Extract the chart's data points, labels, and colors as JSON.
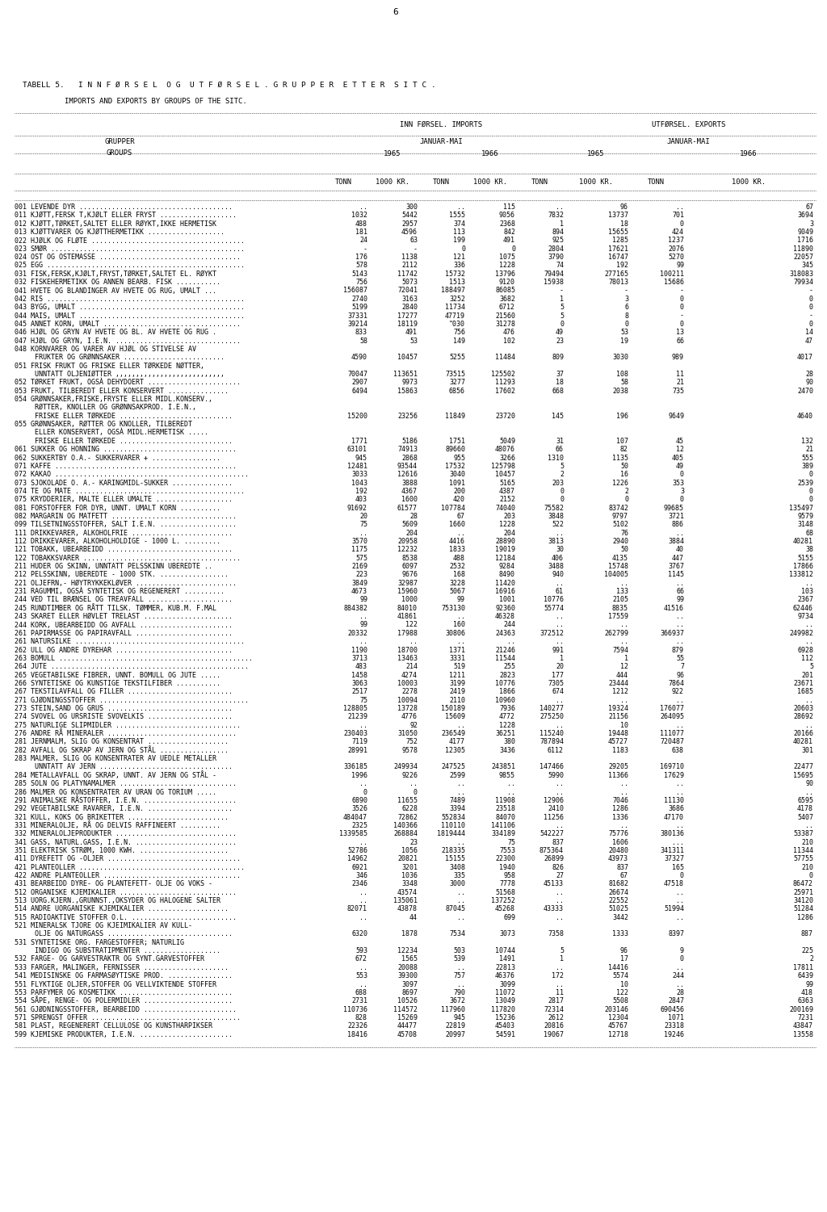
{
  "title1": "TABELL 5.   I N N F Ø R S E L  O G  U T F Ø R S E L . G R U P P E R  E T T E R  S I T C .",
  "title2": "IMPORTS AND EXPORTS BY GROUPS OF THE SITC.",
  "rows": [
    [
      "001 LEVENDE DYR ......................................",
      "..",
      "300",
      "..",
      "115",
      "..",
      "96",
      "..",
      "67"
    ],
    [
      "011 KJØTT,FERSK T,KJØLT ELLER FRYST ...................",
      "1032",
      "5442",
      "1555",
      "9056",
      "7832",
      "13737",
      "701",
      "3694"
    ],
    [
      "012 KJØTT,TØRKET,SALTET ELLER RØYKT,IKKE HERMETISK",
      "488",
      "2957",
      "374",
      "2368",
      "1",
      "18",
      "0",
      "3"
    ],
    [
      "013 KJØTTVARER OG KJØTTHERMETIKK ...................",
      "181",
      "4596",
      "113",
      "842",
      "894",
      "15655",
      "424",
      "9049"
    ],
    [
      "022 HJØLK OG FLØTE ......................................",
      "24",
      "63",
      "199",
      "491",
      "925",
      "1285",
      "1237",
      "1716"
    ],
    [
      "023 SMØR ................................................",
      "-",
      "-",
      "0",
      "0",
      "2804",
      "17621",
      "2076",
      "11890"
    ],
    [
      "024 OST OG OSTEMASSE ...................................",
      "176",
      "1138",
      "121",
      "1075",
      "3790",
      "16747",
      "5270",
      "22057"
    ],
    [
      "025 EGG .................................................",
      "578",
      "2112",
      "336",
      "1228",
      "74",
      "192",
      "99",
      "345"
    ],
    [
      "031 FISK,FERSK,KJØLT,FRYST,TØRKET,SALTET EL. RØYKT",
      "5143",
      "11742",
      "15732",
      "13796",
      "79494",
      "277165",
      "100211",
      "318083"
    ],
    [
      "032 FISKEHERMETIKK OG ANNEN BEARB. FISK ...........",
      "756",
      "5073",
      "1513",
      "9120",
      "15938",
      "78013",
      "15686",
      "79934"
    ],
    [
      "041 HVETE OG BLANDINGER AV HVETE OG RUG, UMALT ...",
      "156087",
      "72041",
      "188497",
      "86085",
      "-",
      "-",
      "-",
      "-"
    ],
    [
      "042 RIS .................................................",
      "2740",
      "3163",
      "3252",
      "3682",
      "1",
      "3",
      "0",
      "0"
    ],
    [
      "043 BYGG, UMALT .........................................",
      "5199",
      "2840",
      "11734",
      "6712",
      "5",
      "6",
      "0",
      "0"
    ],
    [
      "044 MAIS, UMALT .........................................",
      "37331",
      "17277",
      "47719",
      "21560",
      "5",
      "8",
      "-",
      "-"
    ],
    [
      "045 ANNET KORN, UMALT ..................................",
      "39214",
      "18119",
      "\"030",
      "31278",
      "0",
      "0",
      "0",
      "0"
    ],
    [
      "046 HJØL OG GRYN AV HVETE OG BL. AV HVETE OG RUG .",
      "833",
      "491",
      "756",
      "476",
      "49",
      "53",
      "13",
      "14"
    ],
    [
      "047 HJØL OG GRYN, I.E.N. ...............................",
      "58",
      "53",
      "149",
      "102",
      "23",
      "19",
      "66",
      "47"
    ],
    [
      "048 KORNVARER OG VARER AV HJØL OG STIVELSE AV",
      "",
      "",
      "",
      "",
      "",
      "",
      "",
      ""
    ],
    [
      "     FRUKTER OG GRØNNSAKER .........................",
      "4590",
      "10457",
      "5255",
      "11484",
      "809",
      "3030",
      "989",
      "4017"
    ],
    [
      "051 FRISK FRUKT OG FRISKE ELLER TØRKEDE NØTTER,",
      "",
      "",
      "",
      "",
      "",
      "",
      "",
      ""
    ],
    [
      "     UNNTATT OLJENIØTTER ,,,,,,,,,,,,,,,,,,,,,,,,,,,",
      "70047",
      "113651",
      "73515",
      "125502",
      "37",
      "108",
      "11",
      "28"
    ],
    [
      "052 TØRKET FRUKT, OGSÀ DEHYDOERT .......................",
      "2907",
      "9973",
      "3277",
      "11293",
      "18",
      "58",
      "21",
      "90"
    ],
    [
      "053 FRUKT, TILBEREDT ELLER KONSERVERT ...............",
      "6494",
      "15863",
      "6856",
      "17602",
      "668",
      "2038",
      "735",
      "2470"
    ],
    [
      "054 GRØNNSAKER,FRISKE,FRYSTE ELLER MIDL.KONSERV.,",
      "",
      "",
      "",
      "",
      "",
      "",
      "",
      ""
    ],
    [
      "     RØTTER, KNOLLER OG GRØNNSAKPROD. I.E.N.,",
      "",
      "",
      "",
      "",
      "",
      "",
      "",
      ""
    ],
    [
      "     FRISKE ELLER TØRKEDE ............................",
      "15200",
      "23256",
      "11849",
      "23720",
      "145",
      "196",
      "9649",
      "4640"
    ],
    [
      "055 GRØNNSAKER, RØTTER OG KNOLLER, TILBEREDT",
      "",
      "",
      "",
      "",
      "",
      "",
      "",
      ""
    ],
    [
      "     ELLER KONSERVERT, OGSÀ MIDL.HERMETISK .....",
      "",
      "",
      "",
      "",
      "",
      "",
      "",
      ""
    ],
    [
      "     FRISKE ELLER TØRKEDE ............................",
      "1771",
      "5186",
      "1751",
      "5049",
      "31",
      "107",
      "45",
      "132"
    ],
    [
      "061 SUKKER OG HONNING .................................",
      "63101",
      "74913",
      "89660",
      "48076",
      "66",
      "82",
      "12",
      "21"
    ],
    [
      "062 SUKKERTBY O.A.- SUKKERVARER + .................",
      "945",
      "2868",
      "955",
      "3266",
      "1310",
      "1135",
      "405",
      "555"
    ],
    [
      "071 KAFFE .............................................",
      "12481",
      "93544",
      "17532",
      "125798",
      "5",
      "50",
      "49",
      "389"
    ],
    [
      "072 KAKAO ................................................",
      "3033",
      "12616",
      "3040",
      "10457",
      "2",
      "16",
      "0",
      "0"
    ],
    [
      "073 SJOKOLADE O. A.- KARINGMIDL-SUKKER ...............",
      "1043",
      "3888",
      "1091",
      "5165",
      "203",
      "1226",
      "353",
      "2539"
    ],
    [
      "074 TE OG MATE ..........................................",
      "192",
      "4367",
      "200",
      "4387",
      "0",
      "2",
      "3",
      "0"
    ],
    [
      "075 KRYDDERIER, MALTE ELLER UMALTE ...................",
      "403",
      "1600",
      "420",
      "2152",
      "0",
      "0",
      "0",
      "0"
    ],
    [
      "081 FORSTOFFER FOR DYR, UNNT. UMALT KORN ..........",
      "91692",
      "61577",
      "107784",
      "74040",
      "75582",
      "83742",
      "99685",
      "135497"
    ],
    [
      "082 MARGARIN OG MATFETT ...............................",
      "20",
      "28",
      "67",
      "203",
      "3848",
      "9797",
      "3721",
      "9579"
    ],
    [
      "099 TILSETNINGSSTOFFER, SALT I.E.N. ...................",
      "75",
      "5609",
      "1660",
      "1228",
      "522",
      "5102",
      "886",
      "3148"
    ],
    [
      "111 DRIKKEVARER, ALKOHOLFRIE .........................",
      "..",
      "204",
      "..",
      "204",
      "..",
      "76",
      "..",
      "68"
    ],
    [
      "112 DRIKKEVARER, ALKOHOLHOLDIGE - 1000 L. .........",
      "3570",
      "20958",
      "4416",
      "28890",
      "3813",
      "2940",
      "3884",
      "40281"
    ],
    [
      "121 TOBAKK, UBEARBEIDD ...............................",
      "1175",
      "12232",
      "1833",
      "19019",
      "30",
      "50",
      "40",
      "38"
    ],
    [
      "122 TOBAKKSVARER .......................................",
      "575",
      "8538",
      "488",
      "12184",
      "406",
      "4135",
      "447",
      "5155"
    ],
    [
      "211 HUDER OG SKINN, UNNTATT PELSSKINN UBEREDTE ..",
      "2169",
      "6097",
      "2532",
      "9284",
      "3488",
      "15748",
      "3767",
      "17866"
    ],
    [
      "212 PELSSKINN, UBEREDTE - 1000 STK. .................",
      "223",
      "9676",
      "168",
      "8490",
      "940",
      "104005",
      "1145",
      "133812"
    ],
    [
      "221 OLJEFRN,- HØYTRYKKEKLØVER .........................",
      "3849",
      "32987",
      "3228",
      "11420",
      "..",
      "..",
      "..",
      ".."
    ],
    [
      "231 RAGUMMI, OGSÀ SYNTETISK OG REGENERERT ..........",
      "4673",
      "15960",
      "5067",
      "16916",
      "61",
      "133",
      "66",
      "103"
    ],
    [
      "244 VED TIL BRÆNSEL OG TREAVFALL .....................",
      "99",
      "1000",
      "99",
      "1001",
      "10776",
      "2105",
      "99",
      "2367"
    ],
    [
      "245 RUNDTIMBER OG RÅTT TILSK. TØMMER, KUB.M. F.MAL",
      "884382",
      "84010",
      "753130",
      "92360",
      "55774",
      "8835",
      "41516",
      "62446"
    ],
    [
      "243 SKARET ELLER HØVLET TRELAST ......................",
      "..",
      "41861",
      "..",
      "46328",
      "..",
      "17559",
      "..",
      "9734"
    ],
    [
      "244 KORK, UBEARBEIDD OG AVFALL .......................",
      "99",
      "122",
      "160",
      "244",
      "..",
      "..",
      "..",
      ".."
    ],
    [
      "261 PAPIRMASSE OG PAPIRAVFALL ........................",
      "20332",
      "17988",
      "30806",
      "24363",
      "372512",
      "262799",
      "366937",
      "249982"
    ],
    [
      "261 NATURSILKE ..........................................",
      "..",
      "..",
      "..",
      "..",
      "..",
      "..",
      "..",
      ".."
    ],
    [
      "262 ULL OG ANDRE DYREHAR .............................",
      "1190",
      "18700",
      "1371",
      "21246",
      "991",
      "7594",
      "879",
      "6928"
    ],
    [
      "263 BOMULL ................................................",
      "3713",
      "13463",
      "3331",
      "11544",
      "1",
      "1",
      "55",
      "112"
    ],
    [
      "264 JUTE .................................................",
      "483",
      "214",
      "519",
      "255",
      "20",
      "12",
      "7",
      "5"
    ],
    [
      "265 VEGETABILSKE FIBRER, UNNT. BOMULL OG JUTE .....",
      "1458",
      "4274",
      "1211",
      "2823",
      "177",
      "444",
      "96",
      "201"
    ],
    [
      "266 SYNTETISKE OG KUNSTIGE TEKSTILFIBER ...........",
      "3063",
      "10003",
      "3199",
      "10776",
      "7305",
      "23444",
      "7864",
      "23671"
    ],
    [
      "267 TEKSTILAVFALL OG FILLER ..........................",
      "2517",
      "2278",
      "2419",
      "1866",
      "674",
      "1212",
      "922",
      "1685"
    ],
    [
      "271 GJØDNINGSSTOFFER .....................................",
      "75",
      "10094",
      "2110",
      "10960",
      "..",
      "..",
      "..",
      ".."
    ],
    [
      "273 STEIN,SAND OG GRUS ...............................",
      "128805",
      "13728",
      "150189",
      "7936",
      "140277",
      "19324",
      "176077",
      "20603"
    ],
    [
      "274 SVOVEL OG URSRISTE SVOVELKIS .....................",
      "21239",
      "4776",
      "15609",
      "4772",
      "275250",
      "21156",
      "264095",
      "28692"
    ],
    [
      "275 NATURLIGE SLIPMIDLER ...............................",
      "..",
      "92",
      "..",
      "1228",
      "..",
      "10",
      "..",
      ".."
    ],
    [
      "276 ANDRE RÅ MINERALER ................................",
      "230403",
      "31050",
      "236549",
      "36251",
      "115240",
      "19448",
      "111077",
      "20166"
    ],
    [
      "281 JERNMALM, SLIG OG KONSENTRAT ....................",
      "7119",
      "752",
      "4177",
      "380",
      "787894",
      "45727",
      "720487",
      "40281"
    ],
    [
      "282 AVFALL OG SKRAP AV JERN OG STÅL .................",
      "28991",
      "9578",
      "12305",
      "3436",
      "6112",
      "1183",
      "638",
      "301"
    ],
    [
      "283 MALMER, SLIG OG KONSENTRATER AV UEDLE METALLER",
      "",
      "",
      "",
      "",
      "",
      "",
      "",
      ""
    ],
    [
      "     UNNTATT AV JERN .................................",
      "336185",
      "249934",
      "247525",
      "243851",
      "147466",
      "29205",
      "169710",
      "22477"
    ],
    [
      "284 METALLAVFALL OG SKRAP, UNNT. AV JERN OG STÅL -",
      "1996",
      "9226",
      "2599",
      "9855",
      "5990",
      "11366",
      "17629",
      "15695"
    ],
    [
      "285 SOLN OG PLATYNAMALMER .............................",
      "..",
      "..",
      "..",
      "..",
      "..",
      "..",
      "..",
      "90"
    ],
    [
      "286 MALMER OG KONSENTRATER AV URAN OG TORIUM .....",
      "0",
      "0",
      "..",
      "..",
      "..",
      "..",
      "..",
      ".."
    ],
    [
      "291 ANIMALSKE RÅSTOFFER, I.E.N. .......................",
      "6890",
      "11655",
      "7489",
      "11908",
      "12906",
      "7046",
      "11130",
      "6595"
    ],
    [
      "292 VEGETABILSKE RAVARER, I.E.N. .....................",
      "3526",
      "6228",
      "3394",
      "23518",
      "2410",
      "1286",
      "3686",
      "4178"
    ],
    [
      "321 KULL, KOKS OG BRIKETTER .........................",
      "484047",
      "72862",
      "552834",
      "84070",
      "11256",
      "1336",
      "47170",
      "5407"
    ],
    [
      "331 MINERALOLJE, RÅ OG DELVIS RAFFINEERT ..........",
      "2325",
      "140366",
      "110110",
      "141106",
      "..",
      "..",
      "..",
      ".."
    ],
    [
      "332 MINERALOLJEPRODUKTER ..............................",
      "1339585",
      "268884",
      "1819444",
      "334189",
      "542227",
      "75776",
      "380136",
      "53387"
    ],
    [
      "341 GASS, NATURL.GASS, I.E.N. .........................",
      "..",
      "23",
      "..",
      "75",
      "837",
      "1606",
      "...",
      "210"
    ],
    [
      "351 ELEKTRISK STRØM, 1000 KWH. ......................",
      "52786",
      "1056",
      "218335",
      "7553",
      "875364",
      "20480",
      "341311",
      "11344"
    ],
    [
      "411 DYREFETT OG -OLJER .................................",
      "14962",
      "20821",
      "15155",
      "22300",
      "26899",
      "43973",
      "37327",
      "57755"
    ],
    [
      "421 PLANTEOLLER .........................................",
      "6921",
      "3201",
      "3408",
      "1940",
      "826",
      "837",
      "165",
      "210"
    ],
    [
      "422 ANDRE PLANTEOLLER ..................................",
      "346",
      "1036",
      "335",
      "958",
      "27",
      "67",
      "0",
      "0"
    ],
    [
      "431 BEARBEIDD DYRE- OG PLANTEFETT- OLJE OG VOKS -",
      "2346",
      "3348",
      "3000",
      "7778",
      "45133",
      "81682",
      "47518",
      "86472"
    ],
    [
      "512 ORGANISKE KJEMIKALIER .............................",
      "..",
      "43574",
      "..",
      "51568",
      "..",
      "26674",
      "..",
      "25971"
    ],
    [
      "513 UORG.KJERN.,GRUNNST.,OKSYDER OG HALOGENE SALTER",
      "..",
      "135061",
      "..",
      "137252",
      "..",
      "22552",
      "..",
      "34120"
    ],
    [
      "514 ANDRE UORGANISKE KJEMIKALIER ....................",
      "82071",
      "43878",
      "87045",
      "45268",
      "43333",
      "51025",
      "51994",
      "51284"
    ],
    [
      "515 RADIOAKTIVE STOFFER O.L. ..........................",
      "..",
      "44",
      "..",
      "699",
      "..",
      "3442",
      "..",
      "1286"
    ],
    [
      "521 MINERALSK TJORE OG KJEIMIKALIER AV KULL-",
      "",
      "",
      "",
      "",
      "",
      "",
      "",
      ""
    ],
    [
      "     OLJE OG NATURGASS ...............................",
      "6320",
      "1878",
      "7534",
      "3073",
      "7358",
      "1333",
      "8397",
      "887"
    ],
    [
      "531 SYNTETISKE ORG. FARGESTOFFER; NATURLIG",
      "",
      "",
      "",
      "",
      "",
      "",
      "",
      ""
    ],
    [
      "     INDIGO OG SUBSTRATIPMENTER ...................",
      "593",
      "12234",
      "503",
      "10744",
      "5",
      "96",
      "9",
      "225"
    ],
    [
      "532 FARGE- OG GARVESTRAKTR OG SYNT.GARVESTOFFER",
      "672",
      "1565",
      "539",
      "1491",
      "1",
      "17",
      "0",
      "2"
    ],
    [
      "533 FARGER, MALINGER, FERNISSER .....................",
      "..",
      "20088",
      "..",
      "22813",
      "..",
      "14416",
      "..",
      "17811"
    ],
    [
      "541 MEDISINSKE OG FARMASØYTISKE PROD. ................",
      "553",
      "39300",
      "757",
      "46376",
      "172",
      "5574",
      "244",
      "6439"
    ],
    [
      "551 FLYKTIGE OLJER,STOFFER OG VELLVIKTENDE STOFFER",
      "..",
      "3097",
      "..",
      "3099",
      "..",
      "10",
      "..",
      "99"
    ],
    [
      "553 PARFYMER OG KOSMETIKK ............................",
      "688",
      "8697",
      "790",
      "11072",
      "11",
      "122",
      "28",
      "418"
    ],
    [
      "554 SÅPE, RENGE- OG POLERMIDLER ......................",
      "2731",
      "10526",
      "3672",
      "13049",
      "2817",
      "5508",
      "2847",
      "6363"
    ],
    [
      "561 GJØDNINGSSTOFFER, BEARBEIDD .......................",
      "110736",
      "114572",
      "117960",
      "117820",
      "72314",
      "203146",
      "690456",
      "200169"
    ],
    [
      "571 SPRENGST OFFER .....................................",
      "828",
      "15269",
      "945",
      "15236",
      "2612",
      "12304",
      "1071",
      "7231"
    ],
    [
      "581 PLAST, REGENERERT CELLULOSE OG KUNSTHARPIKSER",
      "22326",
      "44477",
      "22819",
      "45403",
      "20816",
      "45767",
      "23318",
      "43847"
    ],
    [
      "599 KJEMISKE PRODUKTER, I.E.N. .......................",
      "18416",
      "45708",
      "20997",
      "54591",
      "19067",
      "12718",
      "19246",
      "13558"
    ]
  ]
}
